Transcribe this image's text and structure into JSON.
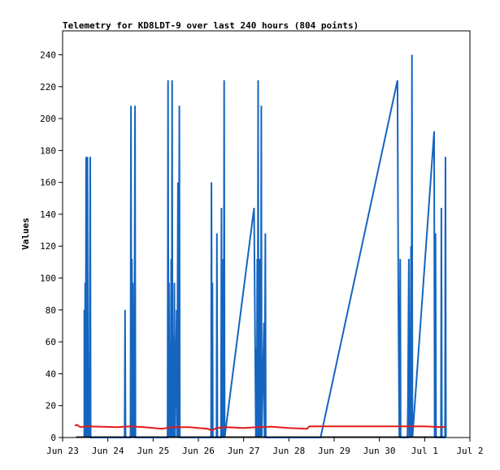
{
  "chart_data": {
    "type": "line",
    "title": "Telemetry for KD8LDT-9 over last 240 hours (804 points)",
    "xlabel": "",
    "ylabel": "Values",
    "xlim": [
      "Jun 23",
      "Jul 2"
    ],
    "ylim": [
      0,
      255
    ],
    "x_ticks": [
      "Jun 23",
      "Jun 24",
      "Jun 25",
      "Jun 26",
      "Jun 27",
      "Jun 28",
      "Jun 29",
      "Jun 30",
      "Jul 1",
      "Jul 2"
    ],
    "y_ticks": [
      0,
      20,
      40,
      60,
      80,
      100,
      120,
      140,
      160,
      180,
      200,
      220,
      240
    ],
    "grid": false,
    "legend": "none",
    "series": [
      {
        "color": "#1565c0",
        "points": [
          [
            0.48,
            0
          ],
          [
            0.48,
            80
          ],
          [
            0.49,
            0
          ],
          [
            0.5,
            97
          ],
          [
            0.51,
            0
          ],
          [
            0.52,
            176
          ],
          [
            0.53,
            0
          ],
          [
            0.55,
            176
          ],
          [
            0.56,
            0
          ],
          [
            0.58,
            40
          ],
          [
            0.59,
            0
          ],
          [
            0.61,
            176
          ],
          [
            0.62,
            0
          ],
          [
            1.37,
            0
          ],
          [
            1.38,
            80
          ],
          [
            1.39,
            0
          ],
          [
            1.5,
            0
          ],
          [
            1.51,
            208
          ],
          [
            1.52,
            0
          ],
          [
            1.53,
            112
          ],
          [
            1.54,
            0
          ],
          [
            1.55,
            97
          ],
          [
            1.56,
            0
          ],
          [
            1.57,
            64
          ],
          [
            1.58,
            0
          ],
          [
            1.6,
            208
          ],
          [
            1.61,
            0
          ],
          [
            2.32,
            0
          ],
          [
            2.33,
            224
          ],
          [
            2.34,
            0
          ],
          [
            2.35,
            97
          ],
          [
            2.36,
            0
          ],
          [
            2.37,
            32
          ],
          [
            2.38,
            0
          ],
          [
            2.4,
            112
          ],
          [
            2.41,
            0
          ],
          [
            2.42,
            224
          ],
          [
            2.43,
            0
          ],
          [
            2.45,
            64
          ],
          [
            2.46,
            0
          ],
          [
            2.47,
            97
          ],
          [
            2.48,
            0
          ],
          [
            2.52,
            80
          ],
          [
            2.53,
            0
          ],
          [
            2.55,
            160
          ],
          [
            2.56,
            0
          ],
          [
            2.58,
            208
          ],
          [
            2.59,
            0
          ],
          [
            3.28,
            0
          ],
          [
            3.29,
            160
          ],
          [
            3.3,
            0
          ],
          [
            3.31,
            97
          ],
          [
            3.32,
            0
          ],
          [
            3.4,
            0
          ],
          [
            3.41,
            128
          ],
          [
            3.42,
            0
          ],
          [
            3.5,
            0
          ],
          [
            3.51,
            144
          ],
          [
            3.52,
            0
          ],
          [
            3.53,
            80
          ],
          [
            3.54,
            0
          ],
          [
            3.55,
            112
          ],
          [
            3.56,
            0
          ],
          [
            3.57,
            224
          ],
          [
            3.58,
            0
          ],
          [
            4.23,
            144
          ],
          [
            4.25,
            72
          ],
          [
            4.27,
            0
          ],
          [
            4.28,
            56
          ],
          [
            4.29,
            0
          ],
          [
            4.3,
            112
          ],
          [
            4.31,
            0
          ],
          [
            4.32,
            224
          ],
          [
            4.33,
            0
          ],
          [
            4.35,
            112
          ],
          [
            4.36,
            0
          ],
          [
            4.37,
            97
          ],
          [
            4.38,
            0
          ],
          [
            4.39,
            208
          ],
          [
            4.4,
            0
          ],
          [
            4.45,
            72
          ],
          [
            4.46,
            0
          ],
          [
            4.48,
            128
          ],
          [
            4.49,
            0
          ],
          [
            5.7,
            0
          ],
          [
            7.4,
            224
          ],
          [
            7.42,
            84
          ],
          [
            7.44,
            0
          ],
          [
            7.46,
            112
          ],
          [
            7.47,
            0
          ],
          [
            7.62,
            0
          ],
          [
            7.63,
            19
          ],
          [
            7.65,
            112
          ],
          [
            7.66,
            0
          ],
          [
            7.67,
            56
          ],
          [
            7.68,
            0
          ],
          [
            7.7,
            120
          ],
          [
            7.71,
            0
          ],
          [
            7.72,
            240
          ],
          [
            7.73,
            0
          ],
          [
            8.21,
            192
          ],
          [
            8.22,
            0
          ],
          [
            8.24,
            128
          ],
          [
            8.25,
            0
          ],
          [
            8.36,
            0
          ],
          [
            8.37,
            144
          ],
          [
            8.38,
            0
          ],
          [
            8.45,
            0
          ],
          [
            8.46,
            176
          ],
          [
            8.47,
            0
          ]
        ]
      },
      {
        "color": "#e41a1c",
        "points": [
          [
            0.27,
            7.5
          ],
          [
            0.32,
            8
          ],
          [
            0.36,
            7
          ],
          [
            0.4,
            6.5
          ],
          [
            0.5,
            7
          ],
          [
            0.8,
            6.8
          ],
          [
            1.2,
            6.5
          ],
          [
            1.5,
            7
          ],
          [
            1.8,
            6.5
          ],
          [
            2.2,
            5.5
          ],
          [
            2.4,
            6.5
          ],
          [
            2.8,
            6.5
          ],
          [
            3.0,
            6
          ],
          [
            3.2,
            5.5
          ],
          [
            3.3,
            4.5
          ],
          [
            3.4,
            6
          ],
          [
            3.6,
            6.5
          ],
          [
            4.0,
            6
          ],
          [
            4.3,
            6.5
          ],
          [
            4.6,
            6.8
          ],
          [
            5.0,
            6
          ],
          [
            5.4,
            5.5
          ],
          [
            5.45,
            7
          ],
          [
            6.0,
            7
          ],
          [
            7.0,
            7
          ],
          [
            8.0,
            7
          ],
          [
            8.4,
            6.5
          ],
          [
            8.46,
            6.8
          ]
        ]
      },
      {
        "color": "#000000",
        "points": [
          [
            0.3,
            0.3
          ],
          [
            8.46,
            0.3
          ]
        ]
      }
    ]
  }
}
